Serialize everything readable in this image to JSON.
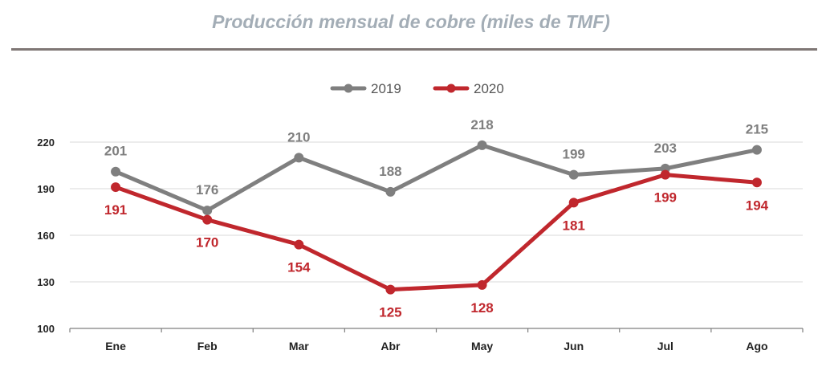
{
  "chart_data": {
    "type": "line",
    "title": "Producción mensual de cobre (miles de TMF)",
    "xlabel": "",
    "ylabel": "",
    "categories": [
      "Ene",
      "Feb",
      "Mar",
      "Abr",
      "May",
      "Jun",
      "Jul",
      "Ago"
    ],
    "ylim": [
      100,
      220
    ],
    "yticks": [
      "100",
      "130",
      "160",
      "190",
      "220"
    ],
    "grid": true,
    "legend": "top-center",
    "series": [
      {
        "name": "2019",
        "color": "#7f7f7f",
        "values": [
          201,
          176,
          210,
          188,
          218,
          199,
          203,
          215
        ],
        "label_position": "above"
      },
      {
        "name": "2020",
        "color": "#c0272d",
        "values": [
          191,
          170,
          154,
          125,
          128,
          181,
          199,
          194
        ],
        "label_position": "below"
      }
    ]
  }
}
